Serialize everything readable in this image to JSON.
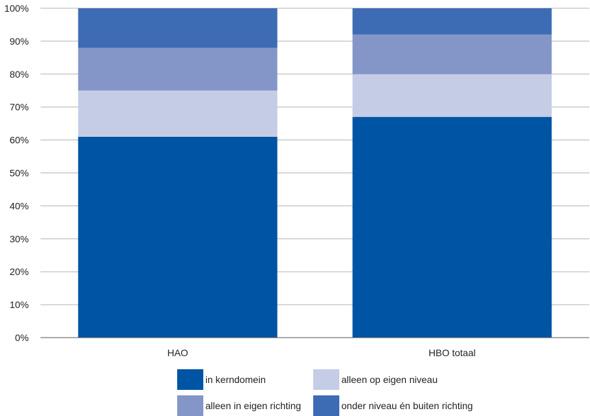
{
  "chart_data": {
    "type": "bar",
    "stacked": true,
    "categories": [
      "HAO",
      "HBO totaal"
    ],
    "series": [
      {
        "name": "in kerndomein",
        "values": [
          61,
          67
        ],
        "color": "#0054a4"
      },
      {
        "name": "alleen op eigen niveau",
        "values": [
          14,
          13
        ],
        "color": "#c5cce6"
      },
      {
        "name": "alleen in eigen richting",
        "values": [
          13,
          12
        ],
        "color": "#8495c8"
      },
      {
        "name": "onder niveau én buiten richting",
        "values": [
          12,
          8
        ],
        "color": "#3d6cb4"
      }
    ],
    "y_ticks": [
      "0%",
      "10%",
      "20%",
      "30%",
      "40%",
      "50%",
      "60%",
      "70%",
      "80%",
      "90%",
      "100%"
    ],
    "ylim": [
      0,
      100
    ],
    "grid": true,
    "legend_position": "bottom"
  }
}
